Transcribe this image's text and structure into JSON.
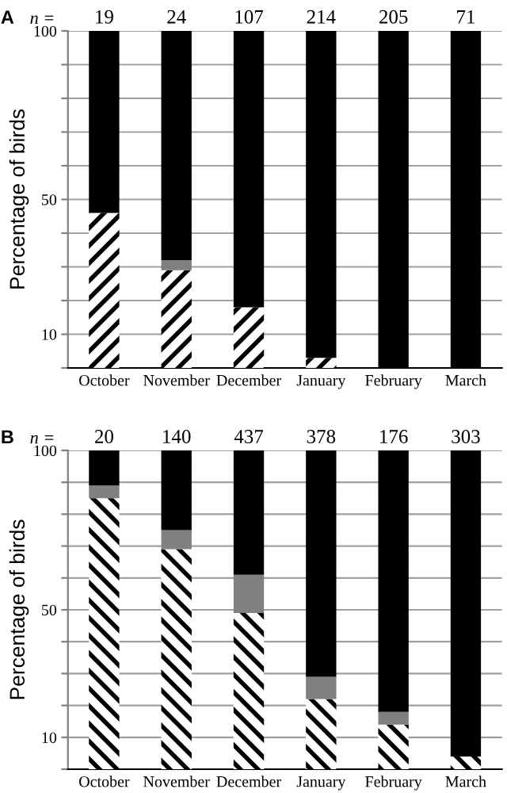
{
  "chart_data": [
    {
      "type": "bar",
      "stacked": true,
      "ylabel": "Percentage of birds",
      "categories": [
        "October",
        "November",
        "December",
        "January",
        "February",
        "March"
      ],
      "series": [
        {
          "color": "#ffffff",
          "values": [
            46,
            29,
            18,
            3,
            0,
            0
          ]
        },
        {
          "color": "#808080",
          "values": [
            0,
            3,
            0,
            0,
            0,
            0
          ]
        },
        {
          "color": "#000000",
          "values": [
            54,
            68,
            82,
            97,
            100,
            100
          ]
        }
      ],
      "ylim": [
        0,
        100
      ],
      "yticks": [
        {
          "value": 0,
          "label": null
        },
        10,
        {
          "value": 20,
          "label": null
        },
        {
          "value": 30,
          "label": null
        },
        {
          "value": 40,
          "label": null
        },
        50,
        {
          "value": 60,
          "label": null
        },
        {
          "value": 70,
          "label": null
        },
        {
          "value": 80,
          "label": null
        },
        {
          "value": 90,
          "label": null
        },
        100
      ],
      "grid": "y",
      "legend": false,
      "annotations": [
        "A",
        "n =",
        "19",
        "24",
        "107",
        "214",
        "205",
        "71"
      ]
    },
    {
      "type": "bar",
      "stacked": true,
      "ylabel": "Percentage of birds",
      "categories": [
        "October",
        "November",
        "December",
        "January",
        "February",
        "March"
      ],
      "series": [
        {
          "color": "#ffffff",
          "values": [
            85,
            69,
            49,
            22,
            14,
            4
          ]
        },
        {
          "color": "#808080",
          "values": [
            4,
            6,
            12,
            7,
            4,
            0
          ]
        },
        {
          "color": "#000000",
          "values": [
            11,
            25,
            39,
            71,
            82,
            96
          ]
        }
      ],
      "ylim": [
        0,
        100
      ],
      "yticks": [
        {
          "value": 0,
          "label": null
        },
        10,
        {
          "value": 20,
          "label": null
        },
        {
          "value": 30,
          "label": null
        },
        {
          "value": 40,
          "label": null
        },
        50,
        {
          "value": 60,
          "label": null
        },
        {
          "value": 70,
          "label": null
        },
        {
          "value": 80,
          "label": null
        },
        {
          "value": 90,
          "label": null
        },
        100
      ],
      "grid": "y",
      "legend": false,
      "annotations": [
        "B",
        "n =",
        "20",
        "140",
        "437",
        "378",
        "176",
        "303"
      ]
    }
  ]
}
